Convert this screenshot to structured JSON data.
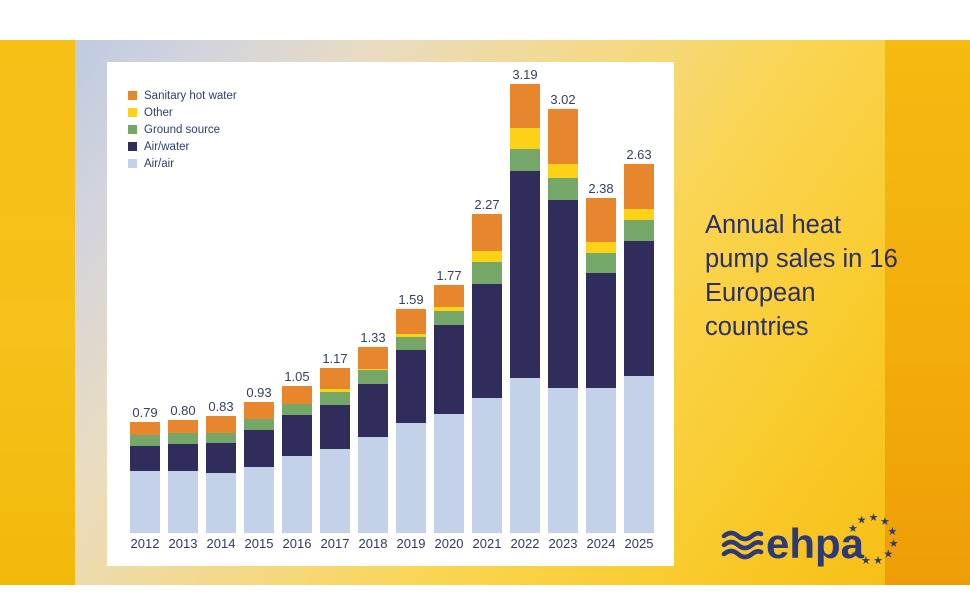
{
  "title": "Annual heat pump sales in 16 European countries",
  "logo": {
    "text": "ehpa",
    "waves_icon": "three-waves",
    "stars_icon": "eu-stars-arc",
    "color": "#2d3a77"
  },
  "frame_colors": {
    "left_band": "#f5c116",
    "right_band": "#f2ab0b",
    "background_top_left": "#bfcbe1",
    "background_bottom_right": "#f8bf16",
    "panel": "#ffffff"
  },
  "chart_data": {
    "type": "bar",
    "stacked": true,
    "grid": false,
    "legend_position": "top-left",
    "categories": [
      "2012",
      "2013",
      "2014",
      "2015",
      "2016",
      "2017",
      "2018",
      "2019",
      "2020",
      "2021",
      "2022",
      "2023",
      "2024",
      "2025"
    ],
    "series": [
      {
        "name": "Air/air",
        "color": "#c3d2e9",
        "values": [
          0.44,
          0.44,
          0.43,
          0.47,
          0.55,
          0.6,
          0.68,
          0.78,
          0.85,
          0.96,
          1.1,
          1.03,
          1.03,
          1.12
        ]
      },
      {
        "name": "Air/water",
        "color": "#302c5c",
        "values": [
          0.18,
          0.19,
          0.21,
          0.26,
          0.29,
          0.31,
          0.38,
          0.52,
          0.63,
          0.81,
          1.47,
          1.34,
          0.82,
          0.96
        ]
      },
      {
        "name": "Ground source",
        "color": "#74a768",
        "values": [
          0.08,
          0.08,
          0.07,
          0.08,
          0.08,
          0.09,
          0.1,
          0.09,
          0.1,
          0.16,
          0.16,
          0.16,
          0.14,
          0.15
        ]
      },
      {
        "name": "Other",
        "color": "#fcd116",
        "values": [
          0.0,
          0.0,
          0.0,
          0.0,
          0.0,
          0.02,
          0.01,
          0.02,
          0.03,
          0.08,
          0.15,
          0.1,
          0.08,
          0.08
        ]
      },
      {
        "name": "Sanitary hot water",
        "color": "#e8862e",
        "values": [
          0.09,
          0.09,
          0.12,
          0.12,
          0.13,
          0.15,
          0.16,
          0.18,
          0.16,
          0.26,
          0.31,
          0.39,
          0.31,
          0.32
        ]
      }
    ],
    "value_labels": [
      "0.79",
      "0.80",
      "0.83",
      "0.93",
      "1.05",
      "1.17",
      "1.33",
      "1.59",
      "1.77",
      "2.27",
      "3.19",
      "3.02",
      "2.38",
      "2.63"
    ],
    "legend_order": [
      "Sanitary hot water",
      "Other",
      "Ground source",
      "Air/water",
      "Air/air"
    ],
    "ylim": [
      0,
      3.4
    ],
    "label_color": "#334062"
  }
}
